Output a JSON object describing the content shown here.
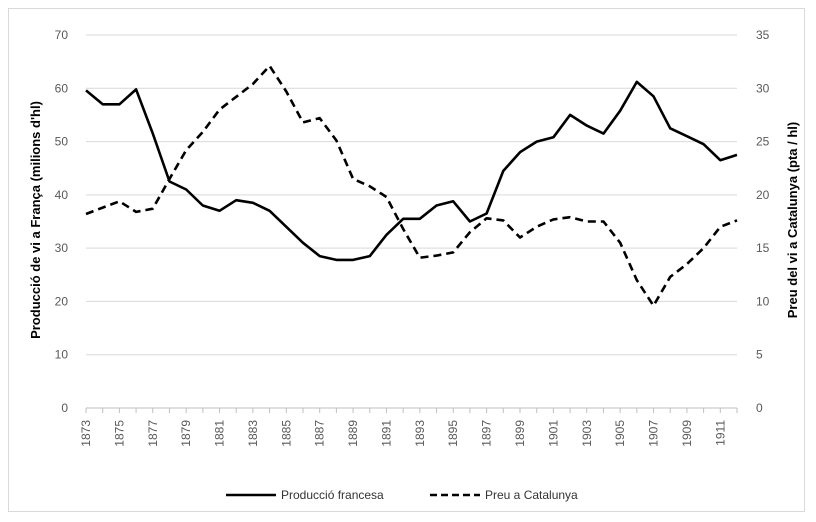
{
  "chart_data": {
    "type": "line",
    "xlabel": "",
    "ylabel": "Producció de vi a França (milions d'hl)",
    "y2label": "Preu del vi a Catalunya (pta / hl)",
    "ylim": [
      0,
      70
    ],
    "y2lim": [
      0,
      35
    ],
    "yticks": [
      "0",
      "10",
      "20",
      "30",
      "40",
      "50",
      "60",
      "70"
    ],
    "y2ticks": [
      "0",
      "5",
      "10",
      "15",
      "20",
      "25",
      "30",
      "35"
    ],
    "xticks": [
      "1873",
      "1875",
      "1877",
      "1879",
      "1881",
      "1883",
      "1885",
      "1887",
      "1889",
      "1891",
      "1893",
      "1895",
      "1897",
      "1899",
      "1901",
      "1903",
      "1905",
      "1907",
      "1909",
      "1911"
    ],
    "x": [
      1873,
      1874,
      1875,
      1876,
      1877,
      1878,
      1879,
      1880,
      1881,
      1882,
      1883,
      1884,
      1885,
      1886,
      1887,
      1888,
      1889,
      1890,
      1891,
      1892,
      1893,
      1894,
      1895,
      1896,
      1897,
      1898,
      1899,
      1900,
      1901,
      1902,
      1903,
      1904,
      1905,
      1906,
      1907,
      1908,
      1909,
      1910,
      1911,
      1912
    ],
    "grid": true,
    "legend_position": "bottom",
    "series": [
      {
        "name": "Producció francesa",
        "axis": "left",
        "style": "solid",
        "color": "#000000",
        "values": [
          59.6,
          57.0,
          57.0,
          59.8,
          51.5,
          42.5,
          41.0,
          38.0,
          37.0,
          39.0,
          38.5,
          37.0,
          34.0,
          31.0,
          28.5,
          27.8,
          27.8,
          28.5,
          32.5,
          35.5,
          35.5,
          38.0,
          38.8,
          35.0,
          36.5,
          44.5,
          48.0,
          50.0,
          50.8,
          55.0,
          53.0,
          51.5,
          55.8,
          61.2,
          58.5,
          52.5,
          51.0,
          49.5,
          46.5,
          47.5
        ]
      },
      {
        "name": "Preu a Catalunya",
        "axis": "right",
        "style": "dashed",
        "color": "#000000",
        "values": [
          18.2,
          18.8,
          19.4,
          18.4,
          18.7,
          21.5,
          24.2,
          25.9,
          28.0,
          29.2,
          30.4,
          32.1,
          29.7,
          26.8,
          27.2,
          25.1,
          21.5,
          20.8,
          19.8,
          16.8,
          14.1,
          14.3,
          14.6,
          16.5,
          17.8,
          17.6,
          16.0,
          17.0,
          17.7,
          17.9,
          17.5,
          17.5,
          15.5,
          12.0,
          9.6,
          12.3,
          13.5,
          15.0,
          17.0,
          17.6
        ]
      }
    ]
  }
}
